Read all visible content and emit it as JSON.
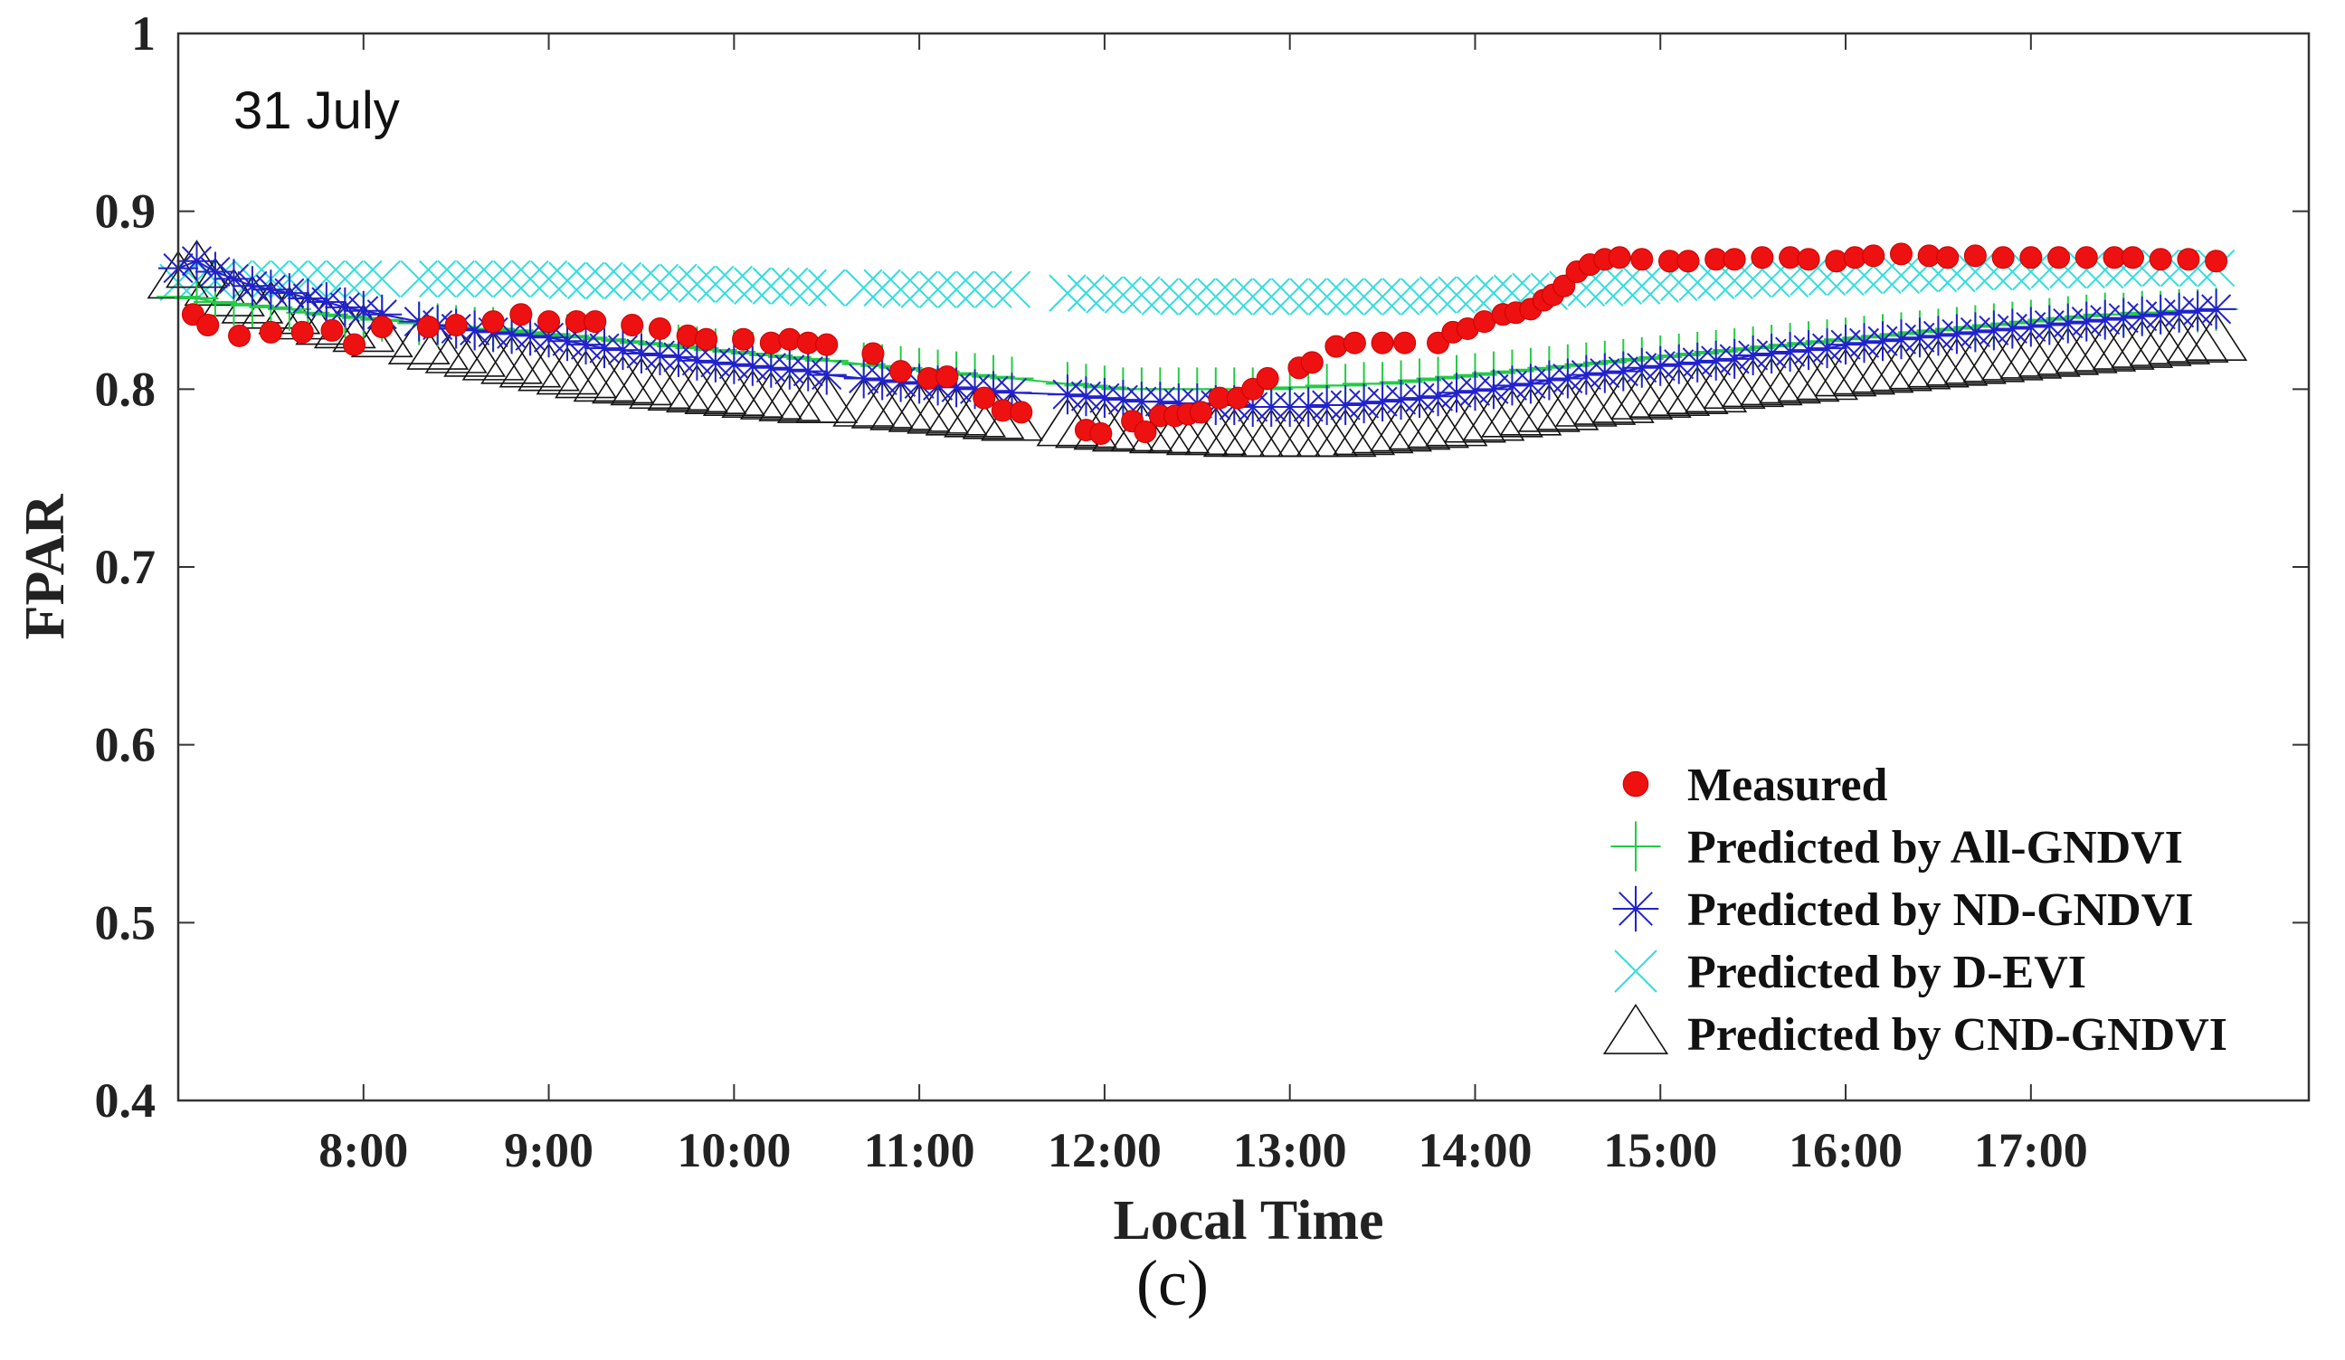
{
  "caption": "(c)",
  "chart_data": {
    "type": "scatter",
    "title": "",
    "annotation": "31 July",
    "xlabel": "Local Time",
    "ylabel": "FPAR",
    "xlim": [
      7.0,
      18.5
    ],
    "ylim": [
      0.4,
      1.0
    ],
    "xticks": [
      8,
      9,
      10,
      11,
      12,
      13,
      14,
      15,
      16,
      17
    ],
    "xtick_labels": [
      "8:00",
      "9:00",
      "10:00",
      "11:00",
      "12:00",
      "13:00",
      "14:00",
      "15:00",
      "16:00",
      "17:00"
    ],
    "yticks": [
      0.4,
      0.5,
      0.6,
      0.7,
      0.8,
      0.9,
      1.0
    ],
    "ytick_labels": [
      "0.4",
      "0.5",
      "0.6",
      "0.7",
      "0.8",
      "0.9",
      "1"
    ],
    "legend_position": "bottom-right",
    "colors": {
      "measured": "#ee1111",
      "all_gndvi": "#22cc44",
      "nd_gndvi": "#2222cc",
      "d_evi": "#33dddd",
      "cnd_gndvi": "#111111"
    },
    "series": [
      {
        "name": "Measured",
        "marker": "circle",
        "x": [
          7.08,
          7.16,
          7.33,
          7.5,
          7.67,
          7.83,
          7.95,
          8.1,
          8.35,
          8.5,
          8.7,
          8.85,
          9.0,
          9.15,
          9.25,
          9.45,
          9.6,
          9.75,
          9.85,
          10.05,
          10.2,
          10.3,
          10.4,
          10.5,
          10.75,
          10.9,
          11.05,
          11.15,
          11.35,
          11.45,
          11.55,
          11.9,
          11.98,
          12.15,
          12.22,
          12.3,
          12.38,
          12.45,
          12.52,
          12.62,
          12.72,
          12.8,
          12.88,
          13.05,
          13.12,
          13.25,
          13.35,
          13.5,
          13.62,
          13.8,
          13.88,
          13.96,
          14.05,
          14.15,
          14.22,
          14.3,
          14.37,
          14.42,
          14.48,
          14.55,
          14.62,
          14.7,
          14.78,
          14.9,
          15.05,
          15.15,
          15.3,
          15.4,
          15.55,
          15.7,
          15.8,
          15.95,
          16.05,
          16.15,
          16.3,
          16.45,
          16.55,
          16.7,
          16.85,
          17.0,
          17.15,
          17.3,
          17.45,
          17.55,
          17.7,
          17.85,
          18.0
        ],
        "y": [
          0.842,
          0.836,
          0.83,
          0.832,
          0.832,
          0.833,
          0.825,
          0.835,
          0.835,
          0.836,
          0.838,
          0.842,
          0.838,
          0.838,
          0.838,
          0.836,
          0.834,
          0.83,
          0.828,
          0.828,
          0.826,
          0.828,
          0.826,
          0.825,
          0.82,
          0.81,
          0.806,
          0.807,
          0.795,
          0.788,
          0.787,
          0.777,
          0.775,
          0.782,
          0.776,
          0.785,
          0.785,
          0.786,
          0.787,
          0.795,
          0.795,
          0.8,
          0.806,
          0.812,
          0.815,
          0.824,
          0.826,
          0.826,
          0.826,
          0.826,
          0.832,
          0.834,
          0.838,
          0.842,
          0.843,
          0.845,
          0.85,
          0.853,
          0.858,
          0.866,
          0.87,
          0.873,
          0.874,
          0.873,
          0.872,
          0.872,
          0.873,
          0.873,
          0.874,
          0.874,
          0.873,
          0.872,
          0.874,
          0.875,
          0.876,
          0.875,
          0.874,
          0.875,
          0.874,
          0.874,
          0.874,
          0.874,
          0.874,
          0.874,
          0.873,
          0.873,
          0.872
        ]
      },
      {
        "name": "Predicted by All-GNDVI",
        "marker": "plus",
        "x": [
          7.0,
          7.1,
          7.2,
          7.3,
          7.4,
          7.5,
          7.6,
          7.7,
          7.8,
          7.9,
          8.0,
          8.1,
          8.3,
          8.4,
          8.5,
          8.6,
          8.7,
          8.8,
          8.9,
          9.0,
          9.1,
          9.2,
          9.3,
          9.4,
          9.5,
          9.6,
          9.7,
          9.8,
          9.9,
          10.0,
          10.1,
          10.2,
          10.3,
          10.4,
          10.5,
          10.7,
          10.8,
          10.9,
          11.0,
          11.1,
          11.2,
          11.3,
          11.4,
          11.5,
          11.8,
          11.9,
          12.0,
          12.1,
          12.2,
          12.3,
          12.4,
          12.5,
          12.6,
          12.7,
          12.8,
          12.9,
          13.0,
          13.1,
          13.2,
          13.3,
          13.4,
          13.5,
          13.6,
          13.7,
          13.8,
          13.9,
          14.0,
          14.1,
          14.2,
          14.3,
          14.4,
          14.5,
          14.6,
          14.7,
          14.8,
          14.9,
          15.0,
          15.1,
          15.2,
          15.3,
          15.4,
          15.5,
          15.6,
          15.7,
          15.8,
          15.9,
          16.0,
          16.1,
          16.2,
          16.3,
          16.4,
          16.5,
          16.6,
          16.7,
          16.8,
          16.9,
          17.0,
          17.1,
          17.2,
          17.3,
          17.4,
          17.5,
          17.6,
          17.7,
          17.8,
          17.9,
          18.0
        ],
        "y": [
          0.852,
          0.851,
          0.849,
          0.848,
          0.847,
          0.846,
          0.845,
          0.843,
          0.842,
          0.841,
          0.84,
          0.839,
          0.837,
          0.836,
          0.835,
          0.834,
          0.834,
          0.833,
          0.832,
          0.831,
          0.83,
          0.829,
          0.828,
          0.827,
          0.826,
          0.825,
          0.824,
          0.823,
          0.822,
          0.821,
          0.82,
          0.819,
          0.818,
          0.817,
          0.816,
          0.814,
          0.813,
          0.812,
          0.811,
          0.81,
          0.809,
          0.808,
          0.807,
          0.806,
          0.803,
          0.802,
          0.801,
          0.8,
          0.8,
          0.8,
          0.8,
          0.8,
          0.8,
          0.8,
          0.8,
          0.8,
          0.801,
          0.801,
          0.802,
          0.802,
          0.803,
          0.803,
          0.804,
          0.805,
          0.806,
          0.807,
          0.808,
          0.809,
          0.81,
          0.811,
          0.812,
          0.813,
          0.814,
          0.815,
          0.816,
          0.817,
          0.818,
          0.819,
          0.82,
          0.821,
          0.822,
          0.823,
          0.824,
          0.825,
          0.826,
          0.827,
          0.828,
          0.829,
          0.83,
          0.831,
          0.832,
          0.833,
          0.834,
          0.835,
          0.836,
          0.837,
          0.838,
          0.839,
          0.84,
          0.841,
          0.842,
          0.842,
          0.843,
          0.843,
          0.844,
          0.844,
          0.845
        ]
      },
      {
        "name": "Predicted by ND-GNDVI",
        "marker": "asterisk",
        "x": [
          7.0,
          7.1,
          7.2,
          7.3,
          7.4,
          7.5,
          7.6,
          7.7,
          7.8,
          7.9,
          8.0,
          8.1,
          8.3,
          8.4,
          8.5,
          8.6,
          8.7,
          8.8,
          8.9,
          9.0,
          9.1,
          9.2,
          9.3,
          9.4,
          9.5,
          9.6,
          9.7,
          9.8,
          9.9,
          10.0,
          10.1,
          10.2,
          10.3,
          10.4,
          10.5,
          10.7,
          10.8,
          10.9,
          11.0,
          11.1,
          11.2,
          11.3,
          11.4,
          11.5,
          11.8,
          11.9,
          12.0,
          12.1,
          12.2,
          12.3,
          12.4,
          12.5,
          12.6,
          12.7,
          12.8,
          12.9,
          13.0,
          13.1,
          13.2,
          13.3,
          13.4,
          13.5,
          13.6,
          13.7,
          13.8,
          13.9,
          14.0,
          14.1,
          14.2,
          14.3,
          14.4,
          14.5,
          14.6,
          14.7,
          14.8,
          14.9,
          15.0,
          15.1,
          15.2,
          15.3,
          15.4,
          15.5,
          15.6,
          15.7,
          15.8,
          15.9,
          16.0,
          16.1,
          16.2,
          16.3,
          16.4,
          16.5,
          16.6,
          16.7,
          16.8,
          16.9,
          17.0,
          17.1,
          17.2,
          17.3,
          17.4,
          17.5,
          17.6,
          17.7,
          17.8,
          17.9,
          18.0
        ],
        "y": [
          0.868,
          0.872,
          0.866,
          0.862,
          0.858,
          0.856,
          0.854,
          0.851,
          0.849,
          0.846,
          0.844,
          0.842,
          0.838,
          0.836,
          0.834,
          0.833,
          0.832,
          0.831,
          0.83,
          0.829,
          0.827,
          0.825,
          0.823,
          0.822,
          0.82,
          0.819,
          0.818,
          0.816,
          0.815,
          0.814,
          0.813,
          0.812,
          0.811,
          0.81,
          0.808,
          0.806,
          0.805,
          0.804,
          0.803,
          0.802,
          0.801,
          0.8,
          0.799,
          0.798,
          0.797,
          0.796,
          0.795,
          0.794,
          0.793,
          0.793,
          0.792,
          0.792,
          0.791,
          0.791,
          0.79,
          0.79,
          0.79,
          0.79,
          0.791,
          0.791,
          0.792,
          0.793,
          0.794,
          0.795,
          0.796,
          0.798,
          0.799,
          0.8,
          0.802,
          0.803,
          0.805,
          0.806,
          0.808,
          0.809,
          0.81,
          0.812,
          0.813,
          0.814,
          0.815,
          0.816,
          0.817,
          0.819,
          0.82,
          0.821,
          0.822,
          0.823,
          0.825,
          0.826,
          0.827,
          0.828,
          0.829,
          0.83,
          0.831,
          0.832,
          0.833,
          0.834,
          0.835,
          0.836,
          0.837,
          0.838,
          0.839,
          0.84,
          0.841,
          0.842,
          0.843,
          0.844,
          0.845
        ]
      },
      {
        "name": "Predicted by D-EVI",
        "marker": "x",
        "x": [
          7.0,
          7.1,
          7.2,
          7.3,
          7.4,
          7.5,
          7.6,
          7.7,
          7.8,
          7.9,
          8.0,
          8.1,
          8.3,
          8.4,
          8.5,
          8.6,
          8.7,
          8.8,
          8.9,
          9.0,
          9.1,
          9.2,
          9.3,
          9.4,
          9.5,
          9.6,
          9.7,
          9.8,
          9.9,
          10.0,
          10.1,
          10.2,
          10.3,
          10.4,
          10.5,
          10.7,
          10.8,
          10.9,
          11.0,
          11.1,
          11.2,
          11.3,
          11.4,
          11.5,
          11.8,
          11.9,
          12.0,
          12.1,
          12.2,
          12.3,
          12.4,
          12.5,
          12.6,
          12.7,
          12.8,
          12.9,
          13.0,
          13.1,
          13.2,
          13.3,
          13.4,
          13.5,
          13.6,
          13.7,
          13.8,
          13.9,
          14.0,
          14.1,
          14.2,
          14.3,
          14.4,
          14.5,
          14.6,
          14.7,
          14.8,
          14.9,
          15.0,
          15.1,
          15.2,
          15.3,
          15.4,
          15.5,
          15.6,
          15.7,
          15.8,
          15.9,
          16.0,
          16.1,
          16.2,
          16.3,
          16.4,
          16.5,
          16.6,
          16.7,
          16.8,
          16.9,
          17.0,
          17.1,
          17.2,
          17.3,
          17.4,
          17.5,
          17.6,
          17.7,
          17.8,
          17.9,
          18.0
        ],
        "y": [
          0.86,
          0.861,
          0.861,
          0.862,
          0.862,
          0.862,
          0.862,
          0.862,
          0.862,
          0.862,
          0.862,
          0.862,
          0.862,
          0.862,
          0.862,
          0.862,
          0.862,
          0.862,
          0.862,
          0.862,
          0.861,
          0.861,
          0.861,
          0.861,
          0.86,
          0.86,
          0.86,
          0.859,
          0.859,
          0.859,
          0.858,
          0.858,
          0.858,
          0.857,
          0.857,
          0.857,
          0.857,
          0.856,
          0.856,
          0.856,
          0.856,
          0.856,
          0.856,
          0.856,
          0.854,
          0.854,
          0.853,
          0.853,
          0.853,
          0.852,
          0.852,
          0.852,
          0.852,
          0.852,
          0.852,
          0.852,
          0.852,
          0.852,
          0.852,
          0.852,
          0.852,
          0.852,
          0.852,
          0.852,
          0.853,
          0.853,
          0.853,
          0.854,
          0.854,
          0.855,
          0.855,
          0.856,
          0.857,
          0.857,
          0.858,
          0.858,
          0.859,
          0.86,
          0.86,
          0.861,
          0.861,
          0.862,
          0.862,
          0.862,
          0.863,
          0.863,
          0.863,
          0.864,
          0.864,
          0.864,
          0.865,
          0.865,
          0.865,
          0.866,
          0.866,
          0.866,
          0.866,
          0.867,
          0.867,
          0.867,
          0.867,
          0.868,
          0.868,
          0.868,
          0.868,
          0.868,
          0.868
        ]
      },
      {
        "name": "Predicted by CND-GNDVI",
        "marker": "triangle",
        "x": [
          7.0,
          7.1,
          7.2,
          7.3,
          7.4,
          7.5,
          7.6,
          7.7,
          7.8,
          7.9,
          8.0,
          8.1,
          8.3,
          8.4,
          8.5,
          8.6,
          8.7,
          8.8,
          8.9,
          9.0,
          9.1,
          9.2,
          9.3,
          9.4,
          9.5,
          9.6,
          9.7,
          9.8,
          9.9,
          10.0,
          10.1,
          10.2,
          10.3,
          10.4,
          10.5,
          10.7,
          10.8,
          10.9,
          11.0,
          11.1,
          11.2,
          11.3,
          11.4,
          11.5,
          11.8,
          11.9,
          12.0,
          12.1,
          12.2,
          12.3,
          12.4,
          12.5,
          12.6,
          12.7,
          12.8,
          12.9,
          13.0,
          13.1,
          13.2,
          13.3,
          13.4,
          13.5,
          13.6,
          13.7,
          13.8,
          13.9,
          14.0,
          14.1,
          14.2,
          14.3,
          14.4,
          14.5,
          14.6,
          14.7,
          14.8,
          14.9,
          15.0,
          15.1,
          15.2,
          15.3,
          15.4,
          15.5,
          15.6,
          15.7,
          15.8,
          15.9,
          16.0,
          16.1,
          16.2,
          16.3,
          16.4,
          16.5,
          16.6,
          16.7,
          16.8,
          16.9,
          17.0,
          17.1,
          17.2,
          17.3,
          17.4,
          17.5,
          17.6,
          17.7,
          17.8,
          17.9,
          18.0
        ],
        "y": [
          0.862,
          0.868,
          0.858,
          0.852,
          0.848,
          0.845,
          0.842,
          0.839,
          0.836,
          0.834,
          0.832,
          0.829,
          0.825,
          0.822,
          0.82,
          0.818,
          0.816,
          0.814,
          0.812,
          0.81,
          0.808,
          0.806,
          0.804,
          0.803,
          0.802,
          0.8,
          0.799,
          0.798,
          0.797,
          0.796,
          0.795,
          0.794,
          0.793,
          0.792,
          0.792,
          0.79,
          0.789,
          0.788,
          0.787,
          0.786,
          0.785,
          0.784,
          0.783,
          0.782,
          0.779,
          0.778,
          0.777,
          0.776,
          0.776,
          0.775,
          0.775,
          0.774,
          0.774,
          0.773,
          0.773,
          0.773,
          0.773,
          0.773,
          0.773,
          0.773,
          0.774,
          0.775,
          0.776,
          0.777,
          0.778,
          0.779,
          0.781,
          0.782,
          0.784,
          0.785,
          0.787,
          0.788,
          0.79,
          0.791,
          0.792,
          0.794,
          0.795,
          0.796,
          0.797,
          0.798,
          0.8,
          0.801,
          0.802,
          0.803,
          0.804,
          0.805,
          0.807,
          0.808,
          0.809,
          0.81,
          0.811,
          0.812,
          0.813,
          0.814,
          0.815,
          0.816,
          0.817,
          0.818,
          0.819,
          0.82,
          0.821,
          0.822,
          0.823,
          0.824,
          0.825,
          0.826,
          0.827
        ]
      }
    ]
  }
}
